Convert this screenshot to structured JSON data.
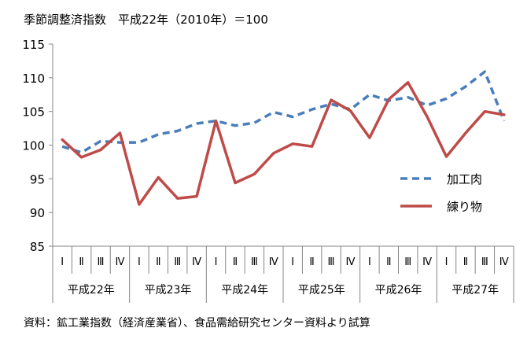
{
  "chart_data": {
    "type": "line",
    "title": "季節調整済指数　平成22年（2010年）＝100",
    "source": "資料：鉱工業指数（経済産業省）、食品需給研究センター資料より試算",
    "ylim": [
      85,
      115
    ],
    "yticks": [
      85,
      90,
      95,
      100,
      105,
      110,
      115
    ],
    "grid": false,
    "legend_position": "right",
    "quarters": [
      "Ⅰ",
      "Ⅱ",
      "Ⅲ",
      "Ⅳ",
      "Ⅰ",
      "Ⅱ",
      "Ⅲ",
      "Ⅳ",
      "Ⅰ",
      "Ⅱ",
      "Ⅲ",
      "Ⅳ",
      "Ⅰ",
      "Ⅱ",
      "Ⅲ",
      "Ⅳ",
      "Ⅰ",
      "Ⅱ",
      "Ⅲ",
      "Ⅳ",
      "Ⅰ",
      "Ⅱ",
      "Ⅲ",
      "Ⅳ"
    ],
    "years": [
      "平成22年",
      "平成23年",
      "平成24年",
      "平成25年",
      "平成26年",
      "平成27年"
    ],
    "series": [
      {
        "name": "加工肉",
        "color": "#4a7ebb",
        "style": "dashed",
        "values": [
          99.8,
          98.9,
          100.6,
          100.4,
          100.4,
          101.6,
          102.1,
          103.2,
          103.6,
          102.9,
          103.3,
          104.9,
          104.2,
          105.3,
          106.1,
          105.3,
          107.5,
          106.6,
          107.1,
          105.9,
          106.9,
          108.7,
          110.9,
          103.6
        ]
      },
      {
        "name": "練り物",
        "color": "#be4b48",
        "style": "solid",
        "values": [
          100.8,
          98.2,
          99.3,
          101.8,
          91.2,
          95.2,
          92.1,
          92.4,
          103.6,
          94.4,
          95.7,
          98.8,
          100.2,
          99.8,
          106.7,
          105.1,
          101.1,
          106.8,
          109.3,
          104.2,
          98.3,
          101.8,
          105.0,
          104.5
        ]
      }
    ]
  }
}
